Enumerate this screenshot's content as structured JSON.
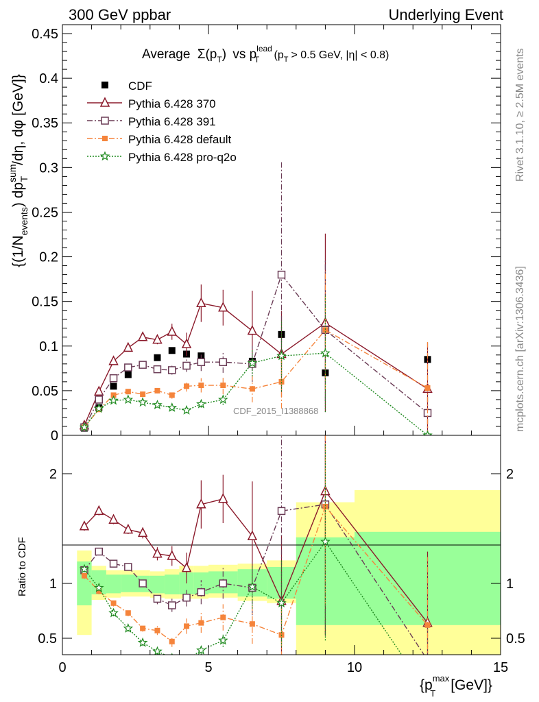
{
  "header": {
    "left": "300 GeV ppbar",
    "right": "Underlying Event"
  },
  "side": {
    "rivet": "Rivet 3.1.10, ≥ 2.5M events",
    "mcplots": "mcplots.cern.ch [arXiv:1306.3436]"
  },
  "title": {
    "pre": "Average",
    "sigma": "Σ(p",
    "sub_t": "T",
    "close": ")",
    "vs": "vs p",
    "lead": "lead",
    "sub_t2": "T",
    "cond": "(p",
    "sub_t3": "T",
    "cond2": "> 0.5 GeV, |η| < 0.8)"
  },
  "watermark": "CDF_2015_I1388868",
  "ylabel_main": "{(1/N_events) dp_T^sum/dη, dφ [GeV]}",
  "ylabel_main_parts": {
    "a": "{(1/N",
    "b": "events",
    "c": ") dp",
    "d": "sum",
    "e": "T",
    "f": "/dη, dφ [GeV]}"
  },
  "ylabel_ratio": "Ratio to CDF",
  "xlabel_parts": {
    "a": "{p",
    "b": "max",
    "c": "T",
    "d": "[GeV]}"
  },
  "chart_data": {
    "type": "line",
    "xlabel": "{p_T^max [GeV]}",
    "xlim": [
      0,
      15
    ],
    "main": {
      "ylim": [
        0,
        0.46
      ],
      "yticks": [
        0,
        0.05,
        0.1,
        0.15,
        0.2,
        0.25,
        0.3,
        0.35,
        0.4,
        0.45
      ],
      "ytick_labels": [
        "0",
        "0.05",
        "0.1",
        "0.15",
        "0.2",
        "0.25",
        "0.3",
        "0.35",
        "0.4",
        "0.45"
      ]
    },
    "ratio": {
      "ylim": [
        0.35,
        2.35
      ],
      "yticks": [
        0.5,
        1,
        2
      ],
      "ytick_labels": [
        "0.5",
        "1",
        "2"
      ]
    },
    "xticks": [
      0,
      5,
      10,
      15
    ],
    "xtick_labels": [
      "0",
      "5",
      "10",
      "15"
    ],
    "legend_position": "top-left",
    "data": {
      "name": "CDF",
      "x": [
        0.75,
        1.25,
        1.75,
        2.25,
        2.75,
        3.25,
        3.75,
        4.25,
        4.75,
        5.5,
        6.5,
        7.5,
        9.0,
        12.5
      ],
      "y": [
        0.008,
        0.031,
        0.055,
        0.068,
        0.079,
        0.087,
        0.095,
        0.091,
        0.089,
        0.082,
        0.083,
        0.113,
        0.07,
        0.085
      ],
      "band_x": [
        0.5,
        1.0,
        1.5,
        2.0,
        2.5,
        3.0,
        3.5,
        4.0,
        4.5,
        5.0,
        6.0,
        7.0,
        8.0,
        10.0,
        15.0
      ],
      "band_stat_lo": [
        0.8,
        0.9,
        0.91,
        0.92,
        0.92,
        0.91,
        0.9,
        0.9,
        0.9,
        0.91,
        0.88,
        0.86,
        0.62,
        0.62
      ],
      "band_stat_hi": [
        1.2,
        1.12,
        1.08,
        1.08,
        1.07,
        1.07,
        1.08,
        1.1,
        1.1,
        1.11,
        1.13,
        1.15,
        1.42,
        1.47
      ],
      "band_tot_lo": [
        0.53,
        0.85,
        0.87,
        0.88,
        0.88,
        0.87,
        0.86,
        0.86,
        0.86,
        0.87,
        0.84,
        0.82,
        0.35,
        0.35
      ],
      "band_tot_hi": [
        1.3,
        1.16,
        1.12,
        1.12,
        1.12,
        1.11,
        1.13,
        1.16,
        1.16,
        1.17,
        1.18,
        1.21,
        1.74,
        1.85
      ]
    },
    "series": [
      {
        "name": "Pythia 6.428 370",
        "color": "#8b1a2b",
        "marker": "triangle-open",
        "dash": "",
        "x": [
          0.75,
          1.25,
          1.75,
          2.25,
          2.75,
          3.25,
          3.75,
          4.25,
          4.75,
          5.5,
          6.5,
          7.5,
          9.0,
          12.5
        ],
        "y": [
          0.011,
          0.049,
          0.083,
          0.098,
          0.11,
          0.107,
          0.116,
          0.102,
          0.148,
          0.143,
          0.117,
          0.091,
          0.126,
          0.052
        ],
        "err": [
          0.002,
          0.004,
          0.004,
          0.004,
          0.004,
          0.005,
          0.009,
          0.013,
          0.021,
          0.02,
          0.045,
          0.048,
          0.1,
          0.052
        ],
        "ratio": [
          1.52,
          1.66,
          1.58,
          1.49,
          1.46,
          1.27,
          1.25,
          1.14,
          1.72,
          1.77,
          1.43,
          0.84,
          1.84,
          0.64
        ],
        "ratio_err": [
          0.04,
          0.04,
          0.04,
          0.04,
          0.05,
          0.06,
          0.09,
          0.14,
          0.22,
          0.22,
          0.5,
          0.6,
          1.3,
          0.65
        ]
      },
      {
        "name": "Pythia 6.428 391",
        "color": "#6a3b55",
        "marker": "square-open",
        "dash": "8,3,2,3",
        "x": [
          0.75,
          1.25,
          1.75,
          2.25,
          2.75,
          3.25,
          3.75,
          4.25,
          4.75,
          5.5,
          6.5,
          7.5,
          9.0,
          12.5
        ],
        "y": [
          0.009,
          0.04,
          0.064,
          0.076,
          0.079,
          0.074,
          0.073,
          0.078,
          0.082,
          0.082,
          0.08,
          0.18,
          0.118,
          0.025
        ],
        "err": [
          0.002,
          0.003,
          0.003,
          0.003,
          0.003,
          0.004,
          0.005,
          0.007,
          0.01,
          0.012,
          0.02,
          0.126,
          0.08,
          0.025
        ],
        "ratio": [
          1.12,
          1.29,
          1.18,
          1.15,
          1.0,
          0.86,
          0.8,
          0.87,
          0.92,
          1.0,
          0.96,
          1.66,
          1.72,
          0.3
        ],
        "ratio_err": [
          0.03,
          0.03,
          0.03,
          0.03,
          0.03,
          0.05,
          0.06,
          0.08,
          0.11,
          0.14,
          0.25,
          1.2,
          1.2,
          0.35
        ]
      },
      {
        "name": "Pythia 6.428 default",
        "color": "#f5843b",
        "marker": "square-filled",
        "dash": "8,3,2,3",
        "x": [
          0.75,
          1.25,
          1.75,
          2.25,
          2.75,
          3.25,
          3.75,
          4.25,
          4.75,
          5.5,
          6.5,
          7.5,
          9.0,
          12.5
        ],
        "y": [
          0.009,
          0.029,
          0.045,
          0.049,
          0.046,
          0.05,
          0.045,
          0.055,
          0.056,
          0.056,
          0.052,
          0.06,
          0.118,
          0.053
        ],
        "err": [
          0.002,
          0.002,
          0.002,
          0.002,
          0.003,
          0.003,
          0.004,
          0.006,
          0.008,
          0.01,
          0.015,
          0.03,
          0.066,
          0.053
        ],
        "ratio": [
          1.07,
          0.93,
          0.82,
          0.73,
          0.59,
          0.57,
          0.47,
          0.61,
          0.64,
          0.69,
          0.63,
          0.53,
          1.7,
          0.62
        ],
        "ratio_err": [
          0.03,
          0.03,
          0.03,
          0.03,
          0.03,
          0.04,
          0.05,
          0.07,
          0.09,
          0.12,
          0.18,
          0.3,
          0.9,
          0.62
        ]
      },
      {
        "name": "Pythia 6.428 pro-q2o",
        "color": "#1f8a1f",
        "marker": "star",
        "dash": "2,2",
        "x": [
          0.75,
          1.25,
          1.75,
          2.25,
          2.75,
          3.25,
          3.75,
          4.25,
          4.75,
          5.5,
          6.5,
          7.5,
          9.0,
          12.5
        ],
        "y": [
          0.009,
          0.03,
          0.039,
          0.04,
          0.037,
          0.034,
          0.031,
          0.028,
          0.035,
          0.04,
          0.081,
          0.089,
          0.092,
          0.0
        ],
        "err": [
          0.002,
          0.002,
          0.002,
          0.002,
          0.002,
          0.003,
          0.003,
          0.003,
          0.004,
          0.006,
          0.015,
          0.04,
          0.066,
          0.0
        ],
        "ratio": [
          1.13,
          0.96,
          0.73,
          0.59,
          0.46,
          0.38,
          0.32,
          0.3,
          0.39,
          0.48,
          0.97,
          0.82,
          1.38,
          0.0
        ],
        "ratio_err": [
          0.03,
          0.03,
          0.03,
          0.03,
          0.03,
          0.03,
          0.03,
          0.03,
          0.04,
          0.06,
          0.2,
          0.4,
          0.9,
          0.0
        ]
      }
    ]
  }
}
